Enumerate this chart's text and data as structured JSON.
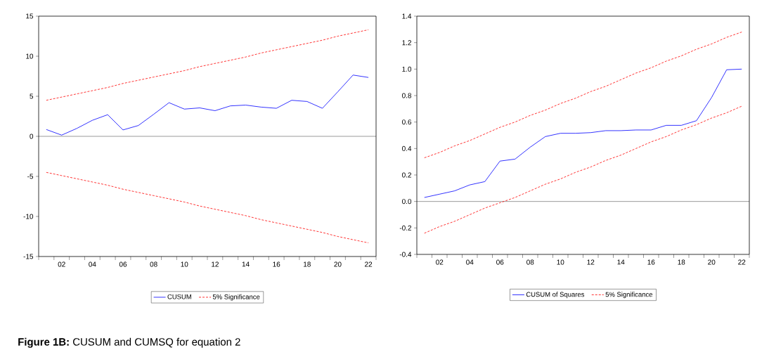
{
  "chart_data": [
    {
      "type": "line",
      "categories": [
        null,
        "02",
        null,
        "04",
        null,
        "06",
        null,
        "08",
        null,
        "10",
        null,
        "12",
        null,
        "14",
        null,
        "16",
        null,
        "18",
        null,
        "20",
        null,
        "22"
      ],
      "series": [
        {
          "name": "CUSUM",
          "color": "#0000ff",
          "line_style": "solid",
          "values": [
            0.85,
            0.15,
            1.0,
            2.0,
            2.7,
            0.8,
            1.35,
            2.75,
            4.2,
            3.4,
            3.55,
            3.2,
            3.8,
            3.9,
            3.65,
            3.5,
            4.5,
            4.35,
            3.5,
            5.55,
            7.65,
            7.35
          ]
        },
        {
          "name": "5% Significance",
          "color": "#ff0000",
          "line_style": "dashed",
          "values": [
            4.5,
            4.9,
            5.3,
            5.7,
            6.1,
            6.6,
            7.0,
            7.4,
            7.8,
            8.2,
            8.7,
            9.1,
            9.5,
            9.9,
            10.4,
            10.8,
            11.2,
            11.6,
            12.0,
            12.5,
            12.9,
            13.3
          ]
        },
        {
          "color": "#ff0000",
          "line_style": "dashed",
          "values": [
            -4.5,
            -4.9,
            -5.3,
            -5.7,
            -6.1,
            -6.6,
            -7.0,
            -7.4,
            -7.8,
            -8.2,
            -8.7,
            -9.1,
            -9.5,
            -9.9,
            -10.4,
            -10.8,
            -11.2,
            -11.6,
            -12.0,
            -12.5,
            -12.9,
            -13.3
          ]
        }
      ],
      "ylim": [
        -15,
        15
      ],
      "yticks": [
        -15,
        -10,
        -5,
        0,
        5,
        10,
        15
      ],
      "ref_lines": [
        {
          "axis": "y",
          "value": 0,
          "color": "#000000"
        }
      ],
      "legend": "bottom",
      "grid": false,
      "annotations": [
        "**Figure 1B:** CUSUM and CUMSQ for equation 2"
      ]
    },
    {
      "type": "line",
      "categories": [
        null,
        "02",
        null,
        "04",
        null,
        "06",
        null,
        "08",
        null,
        "10",
        null,
        "12",
        null,
        "14",
        null,
        "16",
        null,
        "18",
        null,
        "20",
        null,
        "22"
      ],
      "series": [
        {
          "name": "CUSUM of Squares",
          "color": "#0000ff",
          "line_style": "solid",
          "values": [
            0.03,
            0.055,
            0.08,
            0.125,
            0.15,
            0.305,
            0.32,
            0.41,
            0.49,
            0.515,
            0.515,
            0.52,
            0.535,
            0.535,
            0.54,
            0.54,
            0.575,
            0.575,
            0.61,
            0.785,
            0.995,
            1.0
          ]
        },
        {
          "name": "5% Significance",
          "color": "#ff0000",
          "line_style": "dashed",
          "values": [
            0.33,
            0.37,
            0.42,
            0.46,
            0.51,
            0.56,
            0.6,
            0.65,
            0.69,
            0.74,
            0.78,
            0.83,
            0.87,
            0.92,
            0.97,
            1.01,
            1.06,
            1.1,
            1.15,
            1.19,
            1.24,
            1.28
          ]
        },
        {
          "color": "#ff0000",
          "line_style": "dashed",
          "values": [
            -0.24,
            -0.19,
            -0.15,
            -0.1,
            -0.05,
            -0.01,
            0.03,
            0.08,
            0.13,
            0.17,
            0.22,
            0.26,
            0.31,
            0.35,
            0.4,
            0.45,
            0.49,
            0.54,
            0.58,
            0.63,
            0.67,
            0.72
          ]
        }
      ],
      "ylim": [
        -0.4,
        1.4
      ],
      "yticks": [
        -0.4,
        -0.2,
        {
          "value": 0,
          "label": "0.0"
        },
        0.2,
        0.4,
        0.6,
        0.8,
        {
          "value": 1,
          "label": "1.0"
        },
        1.2,
        1.4
      ],
      "ref_lines": [
        {
          "axis": "y",
          "value": 0,
          "color": "#000000"
        }
      ],
      "legend": "bottom",
      "grid": false
    }
  ]
}
